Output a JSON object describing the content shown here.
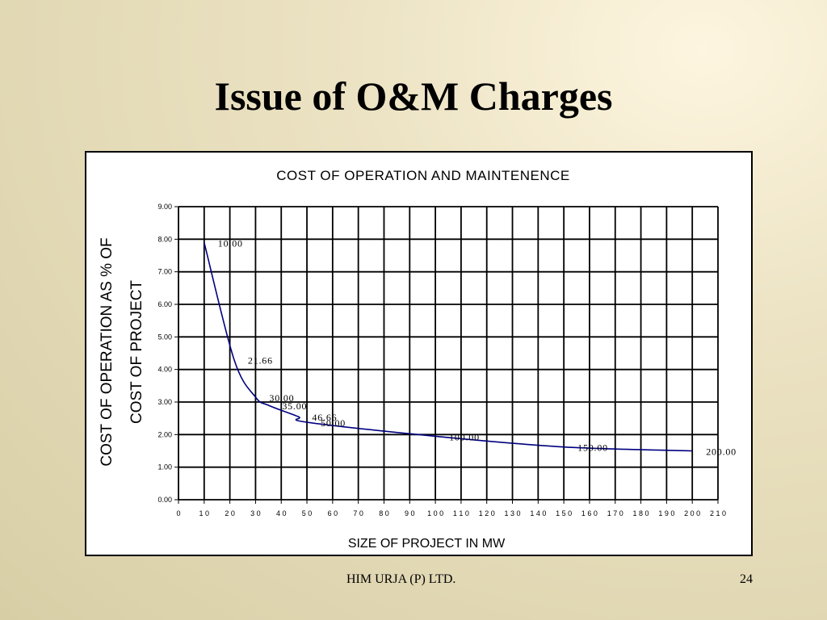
{
  "slide": {
    "title": "Issue of O&M Charges",
    "footer_company": "HIM URJA (P) LTD.",
    "page_number": "24"
  },
  "chart_data": {
    "type": "line",
    "title": "COST OF OPERATION AND MAINTENENCE",
    "xlabel": "SIZE OF PROJECT IN MW",
    "ylabel_lines": [
      "COST OF OPERATION AS % OF",
      "COST OF PROJECT"
    ],
    "xlim": [
      0,
      210
    ],
    "ylim": [
      0,
      9
    ],
    "grid": true,
    "legend": "none",
    "line_color": "#000080",
    "x_ticks": [
      "0",
      "1 0",
      "2 0",
      "3 0",
      "4 0",
      "5 0",
      "6 0",
      "7 0",
      "8 0",
      "9 0",
      "1 0 0",
      "1 1 0",
      "1 2 0",
      "1 3 0",
      "1 4 0",
      "1 5 0",
      "1 6 0",
      "1 7 0",
      "1 8 0",
      "1 9 0",
      "2 0 0",
      "2 1 0"
    ],
    "y_ticks": [
      "0.00",
      "1.00",
      "2.00",
      "3.00",
      "4.00",
      "5.00",
      "6.00",
      "7.00",
      "8.00",
      "9.00"
    ],
    "series": [
      {
        "x": [
          10,
          21.66,
          30,
          35,
          46.66,
          50,
          100,
          150,
          200
        ],
        "y": [
          7.9,
          4.3,
          3.15,
          2.9,
          2.55,
          2.38,
          1.95,
          1.62,
          1.5
        ]
      }
    ],
    "data_labels": [
      "10.00",
      "21.66",
      "30.00",
      "35.00",
      "46.66",
      "50.00",
      "100.00",
      "150.00",
      "200.00"
    ]
  }
}
